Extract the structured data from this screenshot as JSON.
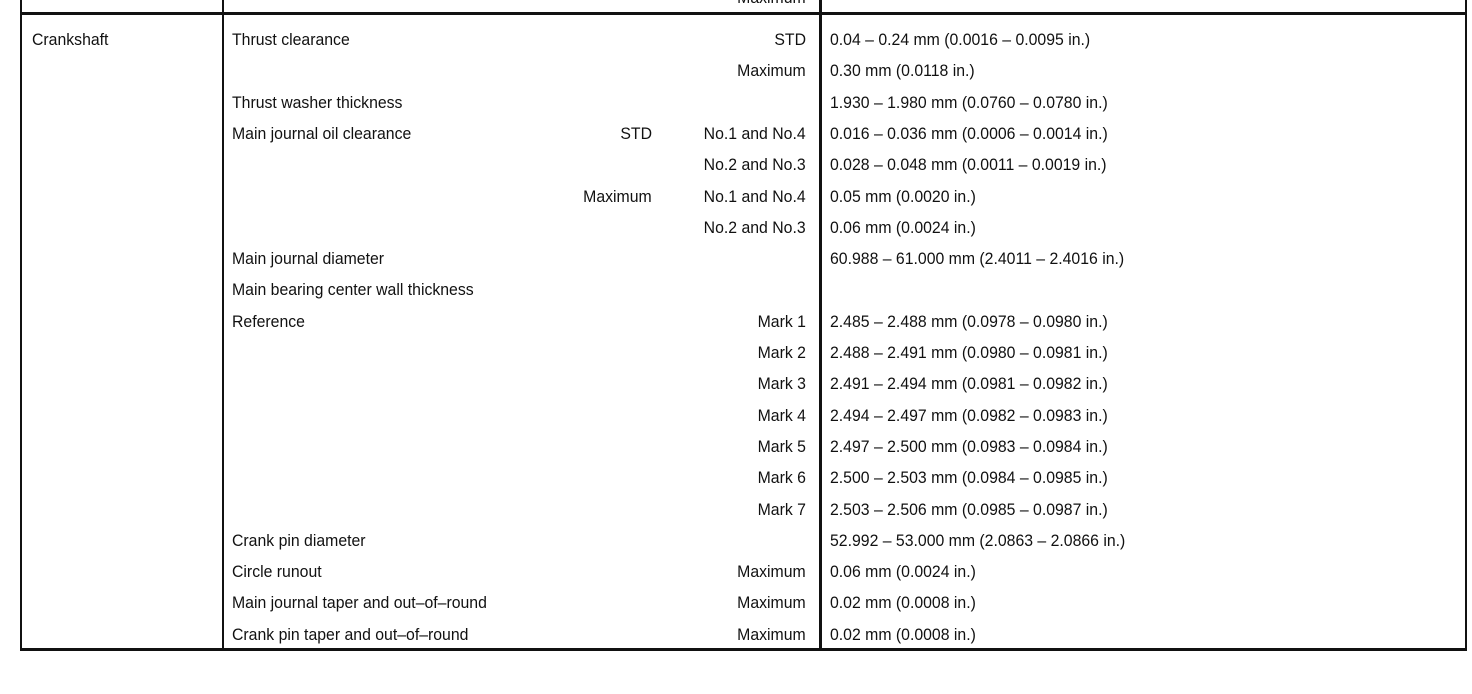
{
  "top_row": {
    "qualifier": "Maximum"
  },
  "section": "Crankshaft",
  "rows": [
    {
      "label": "Thrust clearance",
      "q1": "",
      "q2": "STD",
      "value": "0.04 – 0.24 mm (0.0016 – 0.0095 in.)"
    },
    {
      "label": "",
      "q1": "",
      "q2": "Maximum",
      "value": "0.30 mm (0.0118 in.)"
    },
    {
      "label": "Thrust washer thickness",
      "q1": "",
      "q2": "",
      "value": "1.930 – 1.980 mm (0.0760 – 0.0780 in.)"
    },
    {
      "label": "Main journal oil clearance",
      "q1": "STD",
      "q2": "No.1 and No.4",
      "value": "0.016 – 0.036 mm (0.0006 – 0.0014 in.)"
    },
    {
      "label": "",
      "q1": "",
      "q2": "No.2 and No.3",
      "value": "0.028 – 0.048 mm (0.0011 – 0.0019 in.)"
    },
    {
      "label": "",
      "q1": "Maximum",
      "q2": "No.1 and No.4",
      "value": "0.05 mm (0.0020 in.)"
    },
    {
      "label": "",
      "q1": "",
      "q2": "No.2 and No.3",
      "value": "0.06 mm (0.0024 in.)"
    },
    {
      "label": "Main journal diameter",
      "q1": "",
      "q2": "",
      "value": "60.988 – 61.000 mm (2.4011 – 2.4016 in.)"
    },
    {
      "label": "Main bearing center wall thickness",
      "q1": "",
      "q2": "",
      "value": ""
    },
    {
      "label": " Reference",
      "q1": "",
      "q2": "Mark 1",
      "value": "2.485 – 2.488 mm (0.0978 – 0.0980 in.)"
    },
    {
      "label": "",
      "q1": "",
      "q2": "Mark 2",
      "value": "2.488 – 2.491 mm (0.0980 – 0.0981 in.)"
    },
    {
      "label": "",
      "q1": "",
      "q2": "Mark 3",
      "value": "2.491 – 2.494 mm (0.0981 – 0.0982 in.)"
    },
    {
      "label": "",
      "q1": "",
      "q2": "Mark 4",
      "value": "2.494 – 2.497 mm (0.0982 – 0.0983 in.)"
    },
    {
      "label": "",
      "q1": "",
      "q2": "Mark 5",
      "value": "2.497 – 2.500 mm (0.0983 – 0.0984 in.)"
    },
    {
      "label": "",
      "q1": "",
      "q2": "Mark 6",
      "value": "2.500 – 2.503 mm (0.0984 – 0.0985 in.)"
    },
    {
      "label": "",
      "q1": "",
      "q2": "Mark 7",
      "value": "2.503 – 2.506 mm (0.0985 – 0.0987 in.)"
    },
    {
      "label": "Crank pin diameter",
      "q1": "",
      "q2": "",
      "value": "52.992 – 53.000 mm (2.0863 – 2.0866 in.)"
    },
    {
      "label": "Circle runout",
      "q1": "",
      "q2": "Maximum",
      "value": "0.06 mm (0.0024 in.)"
    },
    {
      "label": "Main journal taper and out–of–round",
      "q1": "",
      "q2": "Maximum",
      "value": "0.02 mm (0.0008 in.)"
    },
    {
      "label": "Crank pin taper and out–of–round",
      "q1": "",
      "q2": "Maximum",
      "value": "0.02 mm (0.0008 in.)"
    }
  ]
}
